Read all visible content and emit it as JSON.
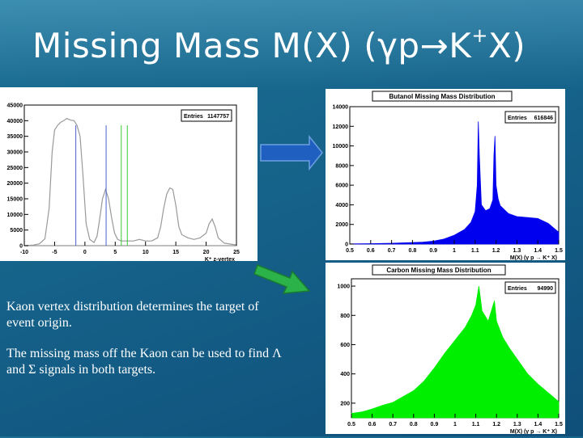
{
  "slide": {
    "title_main": "Missing Mass M(X) (γp→K",
    "title_sup": "+",
    "title_end": "X)",
    "paragraph1": "Kaon vertex distribution determines the target of event origin.",
    "paragraph2": "The missing mass off the Kaon can be used to  find Λ and Σ signals in both targets."
  },
  "arrows": {
    "top_color": "#1f5fbf",
    "bottom_color": "#2bb34a"
  },
  "chart_data": [
    {
      "type": "histogram",
      "title": "",
      "stats_label": "Entries",
      "stats_value": "1147757",
      "xlabel": "K⁺ z-vertex",
      "x_ticks": [
        "-10",
        "-5",
        "0",
        "5",
        "10",
        "15",
        "20",
        "25"
      ],
      "y_ticks": [
        "0",
        "5000",
        "10000",
        "15000",
        "20000",
        "25000",
        "30000",
        "35000",
        "40000",
        "45000"
      ],
      "xlim": [
        -10,
        25
      ],
      "ylim": [
        0,
        45000
      ],
      "color": "#999999",
      "cut_lines": [
        -1.5,
        3.5,
        6.0,
        7.0
      ],
      "points": [
        [
          -10,
          0
        ],
        [
          -8.5,
          200
        ],
        [
          -7.5,
          600
        ],
        [
          -6.6,
          2200
        ],
        [
          -5.9,
          12000
        ],
        [
          -5.4,
          30000
        ],
        [
          -5,
          37000
        ],
        [
          -4.5,
          38500
        ],
        [
          -4,
          39500
        ],
        [
          -3.5,
          40000
        ],
        [
          -3,
          40700
        ],
        [
          -2.4,
          40200
        ],
        [
          -1.8,
          40000
        ],
        [
          -1.3,
          38500
        ],
        [
          -0.8,
          35000
        ],
        [
          -0.3,
          22000
        ],
        [
          0.2,
          7000
        ],
        [
          0.8,
          2000
        ],
        [
          1.5,
          1000
        ],
        [
          2,
          3000
        ],
        [
          2.4,
          8000
        ],
        [
          2.9,
          15000
        ],
        [
          3.4,
          18000
        ],
        [
          3.9,
          15000
        ],
        [
          4.4,
          9000
        ],
        [
          4.9,
          4000
        ],
        [
          5.4,
          2000
        ],
        [
          6,
          1500
        ],
        [
          7,
          1500
        ],
        [
          8,
          1500
        ],
        [
          9,
          2000
        ],
        [
          10,
          1500
        ],
        [
          11,
          1500
        ],
        [
          12,
          2500
        ],
        [
          12.5,
          6000
        ],
        [
          13,
          12000
        ],
        [
          13.5,
          16500
        ],
        [
          14,
          18500
        ],
        [
          14.5,
          18000
        ],
        [
          15,
          13000
        ],
        [
          15.5,
          6000
        ],
        [
          16,
          3500
        ],
        [
          17,
          2500
        ],
        [
          18,
          2000
        ],
        [
          19,
          2500
        ],
        [
          20,
          4000
        ],
        [
          20.5,
          7000
        ],
        [
          21,
          8500
        ],
        [
          21.5,
          6000
        ],
        [
          22,
          2500
        ],
        [
          23,
          800
        ],
        [
          25,
          200
        ]
      ]
    },
    {
      "type": "histogram",
      "title": "Butanol Missing Mass Distribution",
      "stats_label": "Entries",
      "stats_value": "616846",
      "xlabel": "M(X) (γ p → K⁺ X)",
      "x_ticks": [
        "0.5",
        "0.6",
        "0.7",
        "0.8",
        "0.9",
        "1",
        "1.1",
        "1.2",
        "1.3",
        "1.4",
        "1.5"
      ],
      "y_ticks": [
        "0",
        "2000",
        "4000",
        "6000",
        "8000",
        "10000",
        "12000",
        "14000"
      ],
      "xlim": [
        0.5,
        1.5
      ],
      "ylim": [
        0,
        14000
      ],
      "color": "#0000ee",
      "points": [
        [
          0.5,
          20
        ],
        [
          0.6,
          40
        ],
        [
          0.7,
          80
        ],
        [
          0.8,
          150
        ],
        [
          0.85,
          200
        ],
        [
          0.9,
          300
        ],
        [
          0.95,
          500
        ],
        [
          1.0,
          900
        ],
        [
          1.05,
          1500
        ],
        [
          1.08,
          2200
        ],
        [
          1.1,
          3300
        ],
        [
          1.11,
          6000
        ],
        [
          1.115,
          12500
        ],
        [
          1.12,
          9000
        ],
        [
          1.13,
          4000
        ],
        [
          1.15,
          3400
        ],
        [
          1.17,
          3600
        ],
        [
          1.185,
          4500
        ],
        [
          1.19,
          9000
        ],
        [
          1.195,
          11000
        ],
        [
          1.2,
          6000
        ],
        [
          1.21,
          4600
        ],
        [
          1.22,
          3900
        ],
        [
          1.24,
          3500
        ],
        [
          1.26,
          3100
        ],
        [
          1.3,
          2800
        ],
        [
          1.35,
          2700
        ],
        [
          1.4,
          2600
        ],
        [
          1.45,
          2100
        ],
        [
          1.5,
          1200
        ]
      ]
    },
    {
      "type": "histogram",
      "title": "Carbon Missing Mass Distribution",
      "stats_label": "Entries",
      "stats_value": "94990",
      "xlabel": "M(X) (γ p → K⁺ X)",
      "x_ticks": [
        "0.5",
        "0.6",
        "0.7",
        "0.8",
        "0.9",
        "1",
        "1.1",
        "1.2",
        "1.3",
        "1.4",
        "1.5"
      ],
      "y_ticks": [
        "200",
        "400",
        "600",
        "800",
        "1000"
      ],
      "xlim": [
        0.5,
        1.5
      ],
      "ylim": [
        100,
        1050
      ],
      "color": "#00ee00",
      "points": [
        [
          0.5,
          130
        ],
        [
          0.55,
          140
        ],
        [
          0.6,
          160
        ],
        [
          0.65,
          185
        ],
        [
          0.7,
          205
        ],
        [
          0.75,
          245
        ],
        [
          0.8,
          285
        ],
        [
          0.85,
          350
        ],
        [
          0.9,
          440
        ],
        [
          0.95,
          540
        ],
        [
          1.0,
          630
        ],
        [
          1.05,
          720
        ],
        [
          1.08,
          800
        ],
        [
          1.1,
          870
        ],
        [
          1.115,
          1000
        ],
        [
          1.13,
          830
        ],
        [
          1.16,
          760
        ],
        [
          1.19,
          900
        ],
        [
          1.2,
          760
        ],
        [
          1.23,
          650
        ],
        [
          1.26,
          580
        ],
        [
          1.3,
          500
        ],
        [
          1.35,
          400
        ],
        [
          1.4,
          330
        ],
        [
          1.45,
          270
        ],
        [
          1.5,
          210
        ]
      ]
    }
  ]
}
